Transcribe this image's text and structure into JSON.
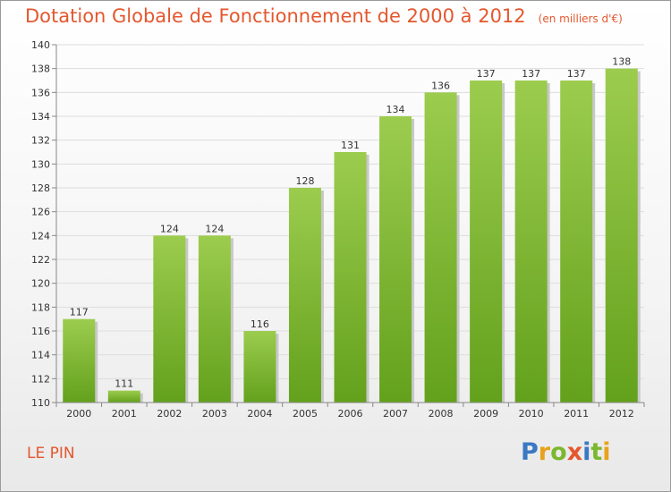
{
  "header": {
    "title": "Dotation Globale de Fonctionnement de 2000 à 2012",
    "subtitle": "(en milliers d'€)"
  },
  "footer": {
    "commune": "LE PIN",
    "logo": "Proxiti",
    "logo_letters": [
      {
        "ch": "P",
        "color": "#3a78c3"
      },
      {
        "ch": "r",
        "color": "#e8a21b"
      },
      {
        "ch": "o",
        "color": "#7bb82f"
      },
      {
        "ch": "x",
        "color": "#e4572e"
      },
      {
        "ch": "i",
        "color": "#3a78c3"
      },
      {
        "ch": "t",
        "color": "#7bb82f"
      },
      {
        "ch": "i",
        "color": "#e8a21b"
      }
    ]
  },
  "colors": {
    "bar_light": "#9ccc4e",
    "bar_dark": "#63a11c",
    "bar_shadow": "#c8c8c8",
    "title": "#e4572e"
  },
  "chart_data": {
    "type": "bar",
    "title": "Dotation Globale de Fonctionnement de 2000 à 2012",
    "subtitle": "(en milliers d'€)",
    "xlabel": "",
    "ylabel": "",
    "categories": [
      "2000",
      "2001",
      "2002",
      "2003",
      "2004",
      "2005",
      "2006",
      "2007",
      "2008",
      "2009",
      "2010",
      "2011",
      "2012"
    ],
    "values": [
      117,
      111,
      124,
      124,
      116,
      128,
      131,
      134,
      136,
      137,
      137,
      137,
      138
    ],
    "ylim": [
      110,
      140
    ],
    "yticks": [
      110,
      112,
      114,
      116,
      118,
      120,
      122,
      124,
      126,
      128,
      130,
      132,
      134,
      136,
      138,
      140
    ],
    "grid": true,
    "legend": "none"
  }
}
